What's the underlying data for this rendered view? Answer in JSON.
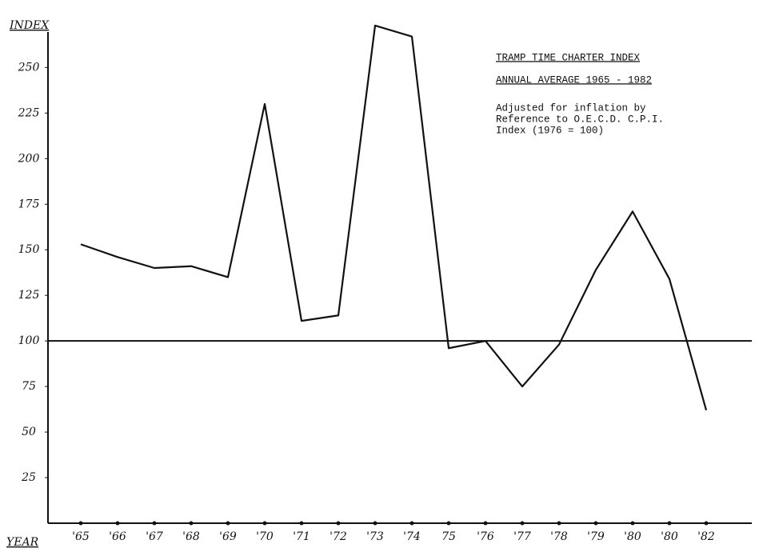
{
  "chart_data": {
    "type": "line",
    "title": "TRAMP TIME CHARTER INDEX",
    "subtitle": "ANNUAL AVERAGE 1965 - 1982",
    "notes": [
      "Adjusted for inflation by",
      "Reference to O.E.C.D.  C.P.I.",
      "Index (1976 = 100)"
    ],
    "y_label": "INDEX",
    "x_label": "YEAR",
    "categories": [
      "'65",
      "'66",
      "'67",
      "'68",
      "'69",
      "'70",
      "'71",
      "'72",
      "'73",
      "'74",
      "75",
      "'76",
      "'77",
      "'78",
      "'79",
      "'80",
      "'80",
      "'82"
    ],
    "values": [
      153,
      146,
      140,
      141,
      135,
      230,
      111,
      114,
      273,
      267,
      96,
      100,
      75,
      98,
      139,
      171,
      134,
      62
    ],
    "color": "#111111",
    "reference_line": 100,
    "ylim": [
      0,
      280
    ],
    "yticks": [
      25,
      50,
      75,
      100,
      125,
      150,
      175,
      200,
      225,
      250
    ],
    "grid": false
  }
}
